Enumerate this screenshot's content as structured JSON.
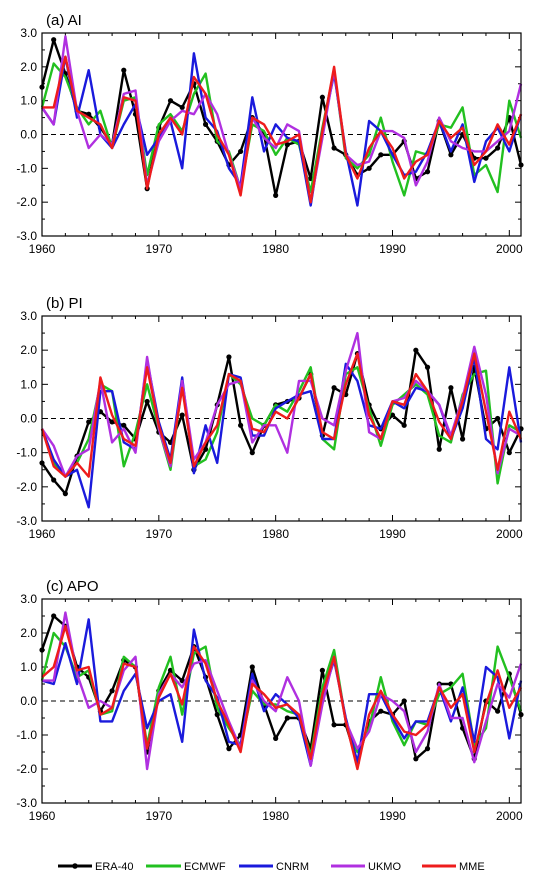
{
  "chart_data": [
    {
      "type": "line",
      "title": "(a) AI",
      "xlim": [
        1960,
        2001
      ],
      "ylim": [
        -3.0,
        3.0
      ],
      "x_ticks": [
        "1960",
        "1970",
        "1980",
        "1990",
        "2000"
      ],
      "y_ticks": [
        "3.0",
        "2.0",
        "1.0",
        "0.0",
        "-1.0",
        "-2.0",
        "-3.0"
      ],
      "zero_line": "dashed",
      "x": [
        1960,
        1961,
        1962,
        1963,
        1964,
        1965,
        1966,
        1967,
        1968,
        1969,
        1970,
        1971,
        1972,
        1973,
        1974,
        1975,
        1976,
        1977,
        1978,
        1979,
        1980,
        1981,
        1982,
        1983,
        1984,
        1985,
        1986,
        1987,
        1988,
        1989,
        1990,
        1991,
        1992,
        1993,
        1994,
        1995,
        1996,
        1997,
        1998,
        1999,
        2000,
        2001
      ],
      "series": [
        {
          "name": "ERA-40",
          "color": "#000000",
          "markers": true,
          "values": [
            1.4,
            2.8,
            1.8,
            0.7,
            0.6,
            0.2,
            -0.3,
            1.9,
            0.6,
            -1.6,
            0.2,
            1.0,
            0.8,
            1.5,
            0.3,
            -0.2,
            -0.9,
            -0.5,
            0.5,
            0.0,
            -1.8,
            -0.3,
            -0.2,
            -1.3,
            1.1,
            -0.4,
            -0.6,
            -1.2,
            -1.0,
            -0.6,
            -0.6,
            -0.2,
            -1.3,
            -1.1,
            0.4,
            -0.6,
            0.0,
            -0.7,
            -0.7,
            -0.4,
            0.5,
            -0.9
          ]
        },
        {
          "name": "ECMWF",
          "color": "#22c020",
          "markers": false,
          "values": [
            0.8,
            2.1,
            1.7,
            0.8,
            0.3,
            0.7,
            -0.4,
            1.0,
            1.1,
            -1.2,
            0.3,
            0.6,
            0.1,
            1.2,
            1.8,
            -0.2,
            -0.5,
            -1.6,
            0.3,
            0.1,
            -0.6,
            -0.1,
            -0.3,
            -1.7,
            0.2,
            1.9,
            -0.7,
            -1.0,
            -0.6,
            0.5,
            -0.8,
            -1.8,
            -0.5,
            -0.6,
            0.3,
            0.2,
            0.8,
            -1.2,
            -0.9,
            -1.7,
            1.0,
            -0.1
          ]
        },
        {
          "name": "CNRM",
          "color": "#1a1adc",
          "markers": false,
          "values": [
            0.8,
            0.3,
            2.3,
            0.5,
            1.9,
            0.0,
            -0.4,
            0.3,
            0.9,
            -0.6,
            -0.1,
            0.4,
            -1.0,
            2.4,
            0.5,
            0.1,
            -1.0,
            -1.5,
            1.1,
            -0.5,
            0.3,
            -0.1,
            -0.2,
            -2.1,
            0.1,
            1.8,
            -0.5,
            -2.1,
            0.4,
            0.1,
            -0.6,
            -1.2,
            -1.1,
            -0.5,
            0.4,
            -0.5,
            0.3,
            -1.4,
            -0.2,
            0.2,
            -0.5,
            0.6
          ]
        },
        {
          "name": "UKMO",
          "color": "#b030e0",
          "markers": false,
          "values": [
            0.8,
            0.3,
            2.9,
            0.7,
            -0.4,
            0.0,
            -0.3,
            1.2,
            1.3,
            -1.5,
            -0.2,
            0.4,
            0.7,
            0.6,
            1.2,
            0.6,
            -0.6,
            -1.6,
            0.5,
            -0.1,
            -0.4,
            0.3,
            0.1,
            -2.0,
            -0.1,
            1.9,
            -0.6,
            -0.9,
            -0.8,
            0.1,
            0.1,
            -0.1,
            -1.5,
            -0.8,
            0.5,
            -0.2,
            -0.4,
            -0.5,
            -0.5,
            -0.2,
            0.1,
            1.5
          ]
        },
        {
          "name": "MME",
          "color": "#ee1c1c",
          "markers": false,
          "values": [
            0.8,
            0.8,
            2.3,
            0.7,
            0.5,
            0.3,
            -0.4,
            1.1,
            1.0,
            -1.6,
            0.0,
            0.5,
            0.0,
            1.7,
            1.2,
            0.0,
            -0.6,
            -1.8,
            0.5,
            0.3,
            -0.3,
            -0.2,
            0.0,
            -2.0,
            0.1,
            2.0,
            -0.6,
            -1.3,
            -0.4,
            0.1,
            -0.4,
            -1.3,
            -0.8,
            -0.6,
            0.4,
            -0.1,
            0.2,
            -0.9,
            -0.5,
            0.3,
            -0.3,
            0.6
          ]
        }
      ]
    },
    {
      "type": "line",
      "title": "(b) PI",
      "xlim": [
        1960,
        2001
      ],
      "ylim": [
        -3.0,
        3.0
      ],
      "x_ticks": [
        "1960",
        "1970",
        "1980",
        "1990",
        "2000"
      ],
      "y_ticks": [
        "3.0",
        "2.0",
        "1.0",
        "0.0",
        "-1.0",
        "-2.0",
        "-3.0"
      ],
      "zero_line": "dashed",
      "x": [
        1960,
        1961,
        1962,
        1963,
        1964,
        1965,
        1966,
        1967,
        1968,
        1969,
        1970,
        1971,
        1972,
        1973,
        1974,
        1975,
        1976,
        1977,
        1978,
        1979,
        1980,
        1981,
        1982,
        1983,
        1984,
        1985,
        1986,
        1987,
        1988,
        1989,
        1990,
        1991,
        1992,
        1993,
        1994,
        1995,
        1996,
        1997,
        1998,
        1999,
        2000,
        2001
      ],
      "series": [
        {
          "name": "ERA-40",
          "color": "#000000",
          "markers": true,
          "values": [
            -1.3,
            -1.8,
            -2.2,
            -1.1,
            -0.1,
            0.2,
            -0.1,
            -0.2,
            -0.6,
            0.5,
            -0.4,
            -0.7,
            0.1,
            -1.5,
            -0.9,
            0.4,
            1.8,
            -0.2,
            -1.0,
            -0.2,
            0.4,
            0.5,
            0.6,
            1.3,
            -0.5,
            0.9,
            0.7,
            1.9,
            0.4,
            -0.3,
            0.1,
            -0.2,
            2.0,
            1.5,
            -0.9,
            0.9,
            -0.6,
            1.5,
            -0.3,
            0.0,
            -1.0,
            -0.3
          ]
        },
        {
          "name": "ECMWF",
          "color": "#22c020",
          "markers": false,
          "values": [
            -0.3,
            -1.3,
            -1.7,
            -1.3,
            -0.6,
            1.0,
            0.8,
            -1.4,
            -0.4,
            1.0,
            -0.3,
            -1.5,
            1.0,
            -1.4,
            -1.2,
            -0.4,
            1.3,
            1.0,
            0.0,
            -0.2,
            0.4,
            0.2,
            0.8,
            1.5,
            -0.6,
            -0.9,
            1.3,
            1.5,
            0.3,
            -0.8,
            0.4,
            0.7,
            1.0,
            0.7,
            -0.5,
            -0.7,
            0.7,
            1.3,
            1.4,
            -1.9,
            -0.2,
            -0.4
          ]
        },
        {
          "name": "CNRM",
          "color": "#1a1adc",
          "markers": false,
          "values": [
            -0.3,
            -1.2,
            -1.7,
            -1.5,
            -2.6,
            0.8,
            0.8,
            -0.7,
            -0.9,
            1.7,
            -0.1,
            -1.2,
            1.2,
            -1.6,
            -0.2,
            -1.3,
            1.3,
            1.2,
            -0.5,
            -0.5,
            0.3,
            0.5,
            0.7,
            0.8,
            -0.6,
            -0.6,
            1.6,
            1.1,
            -0.2,
            -0.3,
            0.5,
            0.3,
            0.9,
            0.8,
            0.4,
            -0.6,
            0.3,
            1.8,
            -0.6,
            -0.9,
            1.5,
            -0.7
          ]
        },
        {
          "name": "UKMO",
          "color": "#b030e0",
          "markers": false,
          "values": [
            -0.3,
            -0.8,
            -1.7,
            -1.1,
            -0.9,
            1.1,
            -0.7,
            -0.3,
            -1.0,
            1.8,
            -0.3,
            -1.4,
            1.1,
            -1.2,
            -0.7,
            0.4,
            1.0,
            1.1,
            -0.7,
            -0.2,
            -0.2,
            -1.0,
            1.1,
            1.1,
            0.0,
            -0.2,
            1.4,
            2.5,
            -0.4,
            -0.6,
            0.5,
            0.6,
            1.1,
            0.8,
            0.4,
            -0.5,
            0.6,
            2.1,
            0.7,
            -1.6,
            -0.3,
            -0.5
          ]
        },
        {
          "name": "MME",
          "color": "#ee1c1c",
          "markers": false,
          "values": [
            -0.3,
            -1.4,
            -1.7,
            -1.3,
            -1.7,
            1.2,
            0.1,
            -0.6,
            -0.8,
            1.5,
            -0.2,
            -1.3,
            0.9,
            -1.4,
            -0.7,
            -0.2,
            1.3,
            1.1,
            -0.3,
            -0.4,
            0.2,
            0.0,
            0.6,
            1.3,
            -0.4,
            -0.6,
            1.0,
            1.9,
            0.1,
            -0.6,
            0.5,
            0.4,
            1.3,
            0.8,
            -0.1,
            -0.6,
            0.5,
            1.9,
            0.2,
            -1.5,
            0.2,
            -0.6
          ]
        }
      ]
    },
    {
      "type": "line",
      "title": "(c) APO",
      "xlim": [
        1960,
        2001
      ],
      "ylim": [
        -3.0,
        3.0
      ],
      "x_ticks": [
        "1960",
        "1970",
        "1980",
        "1990",
        "2000"
      ],
      "y_ticks": [
        "3.0",
        "2.0",
        "1.0",
        "0.0",
        "-1.0",
        "-2.0",
        "-3.0"
      ],
      "zero_line": "dashed",
      "x": [
        1960,
        1961,
        1962,
        1963,
        1964,
        1965,
        1966,
        1967,
        1968,
        1969,
        1970,
        1971,
        1972,
        1973,
        1974,
        1975,
        1976,
        1977,
        1978,
        1979,
        1980,
        1981,
        1982,
        1983,
        1984,
        1985,
        1986,
        1987,
        1988,
        1989,
        1990,
        1991,
        1992,
        1993,
        1994,
        1995,
        1996,
        1997,
        1998,
        1999,
        2000,
        2001
      ],
      "series": [
        {
          "name": "ERA-40",
          "color": "#000000",
          "markers": true,
          "values": [
            1.5,
            2.5,
            2.2,
            1.0,
            0.7,
            -0.3,
            0.3,
            1.2,
            1.0,
            -1.5,
            0.3,
            0.9,
            0.6,
            1.6,
            0.7,
            -0.4,
            -1.4,
            -1.0,
            1.0,
            -0.1,
            -1.1,
            -0.5,
            -0.5,
            -1.4,
            0.9,
            -0.7,
            -0.7,
            -1.8,
            -0.6,
            -0.3,
            -0.4,
            0.0,
            -1.7,
            -1.4,
            0.5,
            0.5,
            -0.8,
            -1.7,
            0.0,
            -0.3,
            0.8,
            -0.4
          ]
        },
        {
          "name": "ECMWF",
          "color": "#22c020",
          "markers": false,
          "values": [
            0.6,
            2.0,
            1.6,
            0.7,
            0.9,
            -0.4,
            -0.3,
            1.3,
            1.0,
            -1.3,
            0.4,
            1.3,
            -0.4,
            1.4,
            1.6,
            -0.2,
            -0.8,
            -1.3,
            0.3,
            -0.1,
            -0.1,
            -0.3,
            -0.4,
            -1.6,
            0.4,
            1.5,
            -0.6,
            -1.5,
            -0.8,
            0.7,
            -0.6,
            -1.3,
            -0.6,
            -0.7,
            0.2,
            0.4,
            0.8,
            -1.3,
            -0.8,
            1.6,
            0.7,
            -0.3
          ]
        },
        {
          "name": "CNRM",
          "color": "#1a1adc",
          "markers": false,
          "values": [
            0.6,
            0.5,
            1.7,
            0.5,
            2.4,
            -0.6,
            -0.6,
            0.3,
            0.8,
            -0.8,
            0.0,
            0.2,
            -1.2,
            2.1,
            0.6,
            0.1,
            -1.2,
            -1.3,
            0.8,
            -0.3,
            0.2,
            -0.1,
            -0.5,
            -1.9,
            0.1,
            1.2,
            -0.5,
            -1.8,
            0.2,
            0.2,
            -0.5,
            -1.1,
            -0.6,
            -0.6,
            0.4,
            -0.6,
            0.4,
            -1.2,
            1.0,
            0.7,
            -1.1,
            0.6
          ]
        },
        {
          "name": "UKMO",
          "color": "#b030e0",
          "markers": false,
          "values": [
            0.6,
            0.6,
            2.6,
            0.8,
            -0.2,
            0.0,
            -0.2,
            0.9,
            1.3,
            -2.0,
            0.2,
            0.8,
            0.4,
            1.1,
            1.2,
            0.3,
            -0.6,
            -1.4,
            0.6,
            0.0,
            -0.3,
            0.7,
            0.0,
            -1.9,
            -0.1,
            1.3,
            -0.6,
            -1.4,
            -0.9,
            0.2,
            0.0,
            -0.3,
            -1.5,
            -0.9,
            0.5,
            -0.5,
            -0.5,
            -1.8,
            -0.6,
            0.5,
            0.1,
            1.1
          ]
        },
        {
          "name": "MME",
          "color": "#ee1c1c",
          "markers": false,
          "values": [
            0.7,
            1.0,
            2.2,
            0.9,
            1.0,
            -0.4,
            -0.2,
            1.1,
            1.0,
            -1.4,
            0.1,
            0.8,
            -0.1,
            1.6,
            1.1,
            0.0,
            -0.7,
            -1.5,
            0.5,
            0.2,
            -0.2,
            -0.1,
            -0.4,
            -1.7,
            0.2,
            1.3,
            -0.6,
            -2.0,
            -0.4,
            0.3,
            -0.4,
            -0.9,
            -1.0,
            -0.7,
            0.4,
            -0.2,
            0.2,
            -1.5,
            -0.1,
            0.9,
            -0.2,
            0.4
          ]
        }
      ]
    }
  ],
  "legend": {
    "position": "bottom",
    "items": [
      {
        "label": "ERA-40",
        "color": "#000000",
        "marker": true
      },
      {
        "label": "ECMWF",
        "color": "#22c020",
        "marker": false
      },
      {
        "label": "CNRM",
        "color": "#1a1adc",
        "marker": false
      },
      {
        "label": "UKMO",
        "color": "#b030e0",
        "marker": false
      },
      {
        "label": "MME",
        "color": "#ee1c1c",
        "marker": false
      }
    ]
  }
}
